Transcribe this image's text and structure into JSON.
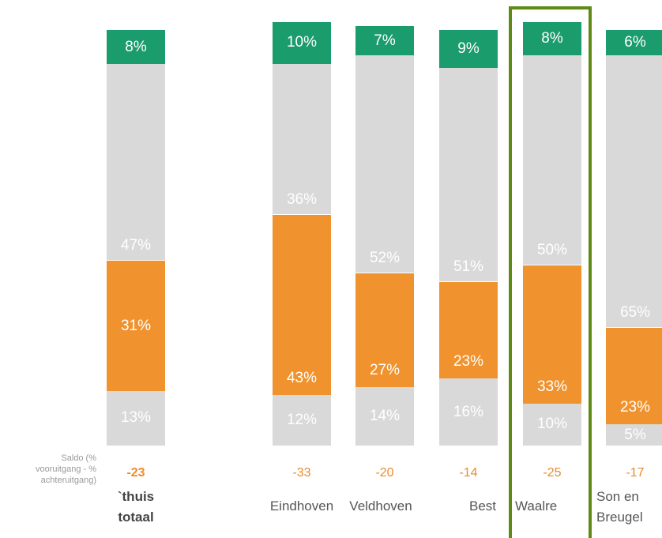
{
  "chart_data": {
    "type": "bar",
    "stacked": true,
    "percent": true,
    "saldo_label": "Saldo  (%\nvooruitgang - %\nachteruitgang)",
    "colors": {
      "top": "#1a9c6c",
      "light": "#d9d9d9",
      "orange": "#f0932e",
      "saldo_text": "#ec8a2a",
      "highlight": "#5f8a16"
    },
    "categories": [
      "`thuis\ntotaal",
      "Eindhoven",
      "Veldhoven",
      "Best",
      "Waalre",
      "Son en\nBreugel"
    ],
    "highlight_category": "Waalre",
    "series": [
      {
        "key": "bottom",
        "color": "light",
        "values": [
          13,
          12,
          14,
          16,
          10,
          5
        ]
      },
      {
        "key": "orange",
        "color": "orange",
        "values": [
          31,
          43,
          27,
          23,
          33,
          23
        ]
      },
      {
        "key": "middle",
        "color": "light",
        "values": [
          47,
          36,
          52,
          51,
          50,
          65
        ]
      },
      {
        "key": "top",
        "color": "top",
        "values": [
          8,
          10,
          7,
          9,
          8,
          6
        ]
      }
    ],
    "labels": [
      [
        "13%",
        "31%",
        "47%",
        "8%"
      ],
      [
        "12%",
        "43%",
        "36%",
        "10%"
      ],
      [
        "14%",
        "27%",
        "52%",
        "7%"
      ],
      [
        "16%",
        "23%",
        "51%",
        "9%"
      ],
      [
        "10%",
        "33%",
        "50%",
        "8%"
      ],
      [
        "5%",
        "23%",
        "65%",
        "6%"
      ]
    ],
    "saldo": [
      "-23",
      "-33",
      "-20",
      "-14",
      "-25",
      "-17"
    ]
  }
}
